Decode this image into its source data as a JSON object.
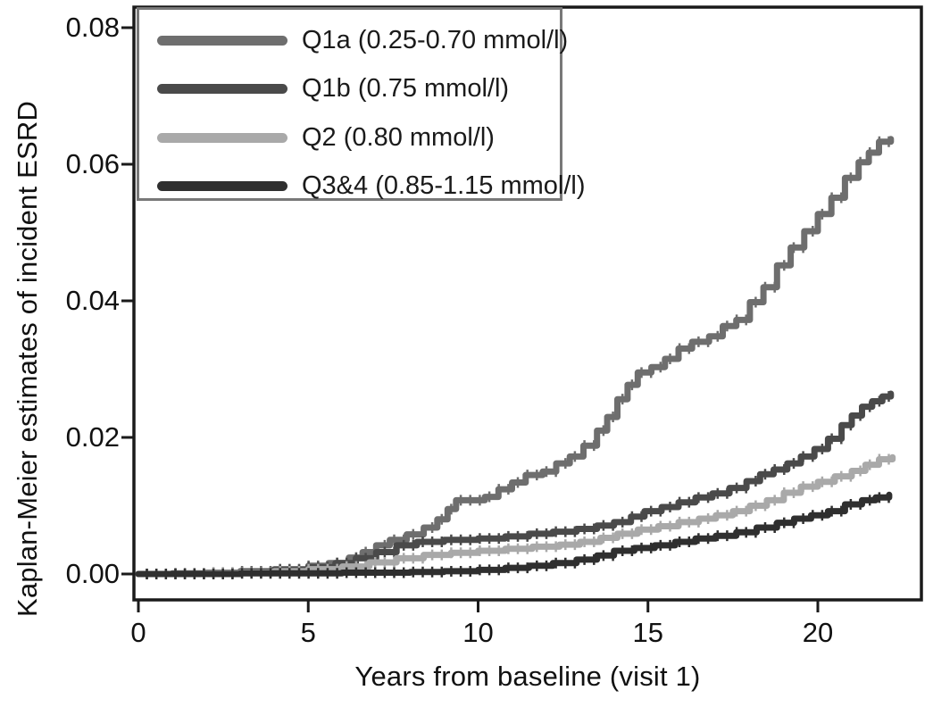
{
  "chart_data": {
    "type": "line",
    "subtype": "kaplan-meier-step",
    "title": "",
    "xlabel": "Years from baseline (visit 1)",
    "ylabel": "Kaplan-Meier estimates of incident ESRD",
    "xlim": [
      0,
      22.8
    ],
    "ylim": [
      0,
      0.08
    ],
    "grid": false,
    "legend_position": "top-left",
    "x_ticks": [
      0,
      5,
      10,
      15,
      20
    ],
    "x_tick_labels": [
      "0",
      "5",
      "10",
      "15",
      "20"
    ],
    "y_ticks": [
      0.0,
      0.02,
      0.04,
      0.06,
      0.08
    ],
    "y_tick_labels": [
      "0.00",
      "0.02",
      "0.04",
      "0.06",
      "0.08"
    ],
    "axis_color": "#1a1a1a",
    "series": [
      {
        "name": "Q1a (0.25-0.70 mmol/l)",
        "color": "#6e6e6e",
        "points": [
          [
            0,
            0
          ],
          [
            1,
            0.0001
          ],
          [
            2,
            0.0002
          ],
          [
            3,
            0.0004
          ],
          [
            4,
            0.0007
          ],
          [
            5,
            0.0012
          ],
          [
            5.6,
            0.0016
          ],
          [
            6.2,
            0.0024
          ],
          [
            6.6,
            0.0032
          ],
          [
            7.0,
            0.0042
          ],
          [
            7.4,
            0.005
          ],
          [
            7.9,
            0.0058
          ],
          [
            8.4,
            0.0068
          ],
          [
            8.8,
            0.008
          ],
          [
            9.1,
            0.0095
          ],
          [
            9.35,
            0.0108
          ],
          [
            10.2,
            0.0113
          ],
          [
            10.6,
            0.0124
          ],
          [
            11.0,
            0.0134
          ],
          [
            11.4,
            0.0145
          ],
          [
            11.9,
            0.015
          ],
          [
            12.3,
            0.0162
          ],
          [
            12.7,
            0.0172
          ],
          [
            13.1,
            0.0188
          ],
          [
            13.5,
            0.021
          ],
          [
            13.8,
            0.023
          ],
          [
            14.1,
            0.0256
          ],
          [
            14.4,
            0.0277
          ],
          [
            14.7,
            0.0295
          ],
          [
            15.1,
            0.0303
          ],
          [
            15.5,
            0.0315
          ],
          [
            15.9,
            0.033
          ],
          [
            16.3,
            0.034
          ],
          [
            16.8,
            0.0348
          ],
          [
            17.2,
            0.0363
          ],
          [
            17.6,
            0.0372
          ],
          [
            18.0,
            0.0398
          ],
          [
            18.4,
            0.042
          ],
          [
            18.8,
            0.0452
          ],
          [
            19.2,
            0.0478
          ],
          [
            19.6,
            0.0502
          ],
          [
            20.0,
            0.0527
          ],
          [
            20.4,
            0.0551
          ],
          [
            20.8,
            0.058
          ],
          [
            21.2,
            0.0603
          ],
          [
            21.5,
            0.0617
          ],
          [
            21.8,
            0.0633
          ],
          [
            22.15,
            0.0637
          ]
        ]
      },
      {
        "name": "Q1b (0.75 mmol/l)",
        "color": "#4a4a4a",
        "points": [
          [
            0,
            0
          ],
          [
            2,
            0.0001
          ],
          [
            3,
            0.0003
          ],
          [
            4,
            0.0006
          ],
          [
            5,
            0.001
          ],
          [
            5.8,
            0.0016
          ],
          [
            6.4,
            0.0023
          ],
          [
            7.0,
            0.0032
          ],
          [
            7.6,
            0.0042
          ],
          [
            8.2,
            0.0047
          ],
          [
            9.0,
            0.005
          ],
          [
            10.0,
            0.0052
          ],
          [
            10.8,
            0.0055
          ],
          [
            11.5,
            0.0059
          ],
          [
            12.2,
            0.0062
          ],
          [
            12.9,
            0.0066
          ],
          [
            13.5,
            0.0071
          ],
          [
            14.0,
            0.0076
          ],
          [
            14.5,
            0.0084
          ],
          [
            14.9,
            0.0092
          ],
          [
            15.4,
            0.0098
          ],
          [
            15.9,
            0.0105
          ],
          [
            16.4,
            0.0112
          ],
          [
            16.9,
            0.0118
          ],
          [
            17.4,
            0.0126
          ],
          [
            17.9,
            0.0136
          ],
          [
            18.3,
            0.0146
          ],
          [
            18.7,
            0.0153
          ],
          [
            19.1,
            0.0162
          ],
          [
            19.5,
            0.0172
          ],
          [
            19.9,
            0.0183
          ],
          [
            20.3,
            0.0198
          ],
          [
            20.7,
            0.0218
          ],
          [
            21.0,
            0.0232
          ],
          [
            21.3,
            0.0245
          ],
          [
            21.6,
            0.0253
          ],
          [
            21.9,
            0.026
          ],
          [
            22.15,
            0.0264
          ]
        ]
      },
      {
        "name": "Q2 (0.80 mmol/l)",
        "color": "#a9a9a9",
        "points": [
          [
            0,
            0
          ],
          [
            2,
            0.0001
          ],
          [
            3,
            0.0002
          ],
          [
            4,
            0.0004
          ],
          [
            5,
            0.0007
          ],
          [
            6,
            0.0011
          ],
          [
            6.8,
            0.0017
          ],
          [
            7.6,
            0.0023
          ],
          [
            8.4,
            0.0028
          ],
          [
            9.2,
            0.0031
          ],
          [
            10.0,
            0.0034
          ],
          [
            10.8,
            0.0037
          ],
          [
            11.6,
            0.004
          ],
          [
            12.4,
            0.0043
          ],
          [
            13.0,
            0.0047
          ],
          [
            13.6,
            0.0053
          ],
          [
            14.1,
            0.0059
          ],
          [
            14.7,
            0.0065
          ],
          [
            15.3,
            0.007
          ],
          [
            15.9,
            0.0076
          ],
          [
            16.5,
            0.0081
          ],
          [
            17.0,
            0.0086
          ],
          [
            17.5,
            0.0092
          ],
          [
            18.0,
            0.01
          ],
          [
            18.5,
            0.0108
          ],
          [
            19.0,
            0.0119
          ],
          [
            19.5,
            0.0128
          ],
          [
            20.0,
            0.0135
          ],
          [
            20.5,
            0.0143
          ],
          [
            21.0,
            0.0151
          ],
          [
            21.4,
            0.016
          ],
          [
            21.8,
            0.0168
          ],
          [
            22.2,
            0.0171
          ]
        ]
      },
      {
        "name": "Q3&4 (0.85-1.15 mmol/l)",
        "color": "#2f2f2f",
        "points": [
          [
            0,
            0
          ],
          [
            3,
            0.0001
          ],
          [
            5,
            0.0001
          ],
          [
            6,
            0.0002
          ],
          [
            7,
            0.0002
          ],
          [
            8,
            0.0003
          ],
          [
            9,
            0.0004
          ],
          [
            10,
            0.0006
          ],
          [
            10.8,
            0.0009
          ],
          [
            11.5,
            0.0012
          ],
          [
            12.2,
            0.0016
          ],
          [
            12.9,
            0.0021
          ],
          [
            13.5,
            0.0027
          ],
          [
            14.0,
            0.0034
          ],
          [
            14.6,
            0.0038
          ],
          [
            15.2,
            0.0042
          ],
          [
            15.8,
            0.0047
          ],
          [
            16.4,
            0.0052
          ],
          [
            17.0,
            0.0056
          ],
          [
            17.6,
            0.0061
          ],
          [
            18.2,
            0.0068
          ],
          [
            18.8,
            0.0075
          ],
          [
            19.3,
            0.0081
          ],
          [
            19.8,
            0.0086
          ],
          [
            20.3,
            0.0092
          ],
          [
            20.8,
            0.0102
          ],
          [
            21.3,
            0.0108
          ],
          [
            21.7,
            0.0112
          ],
          [
            22.1,
            0.0116
          ]
        ]
      }
    ]
  }
}
